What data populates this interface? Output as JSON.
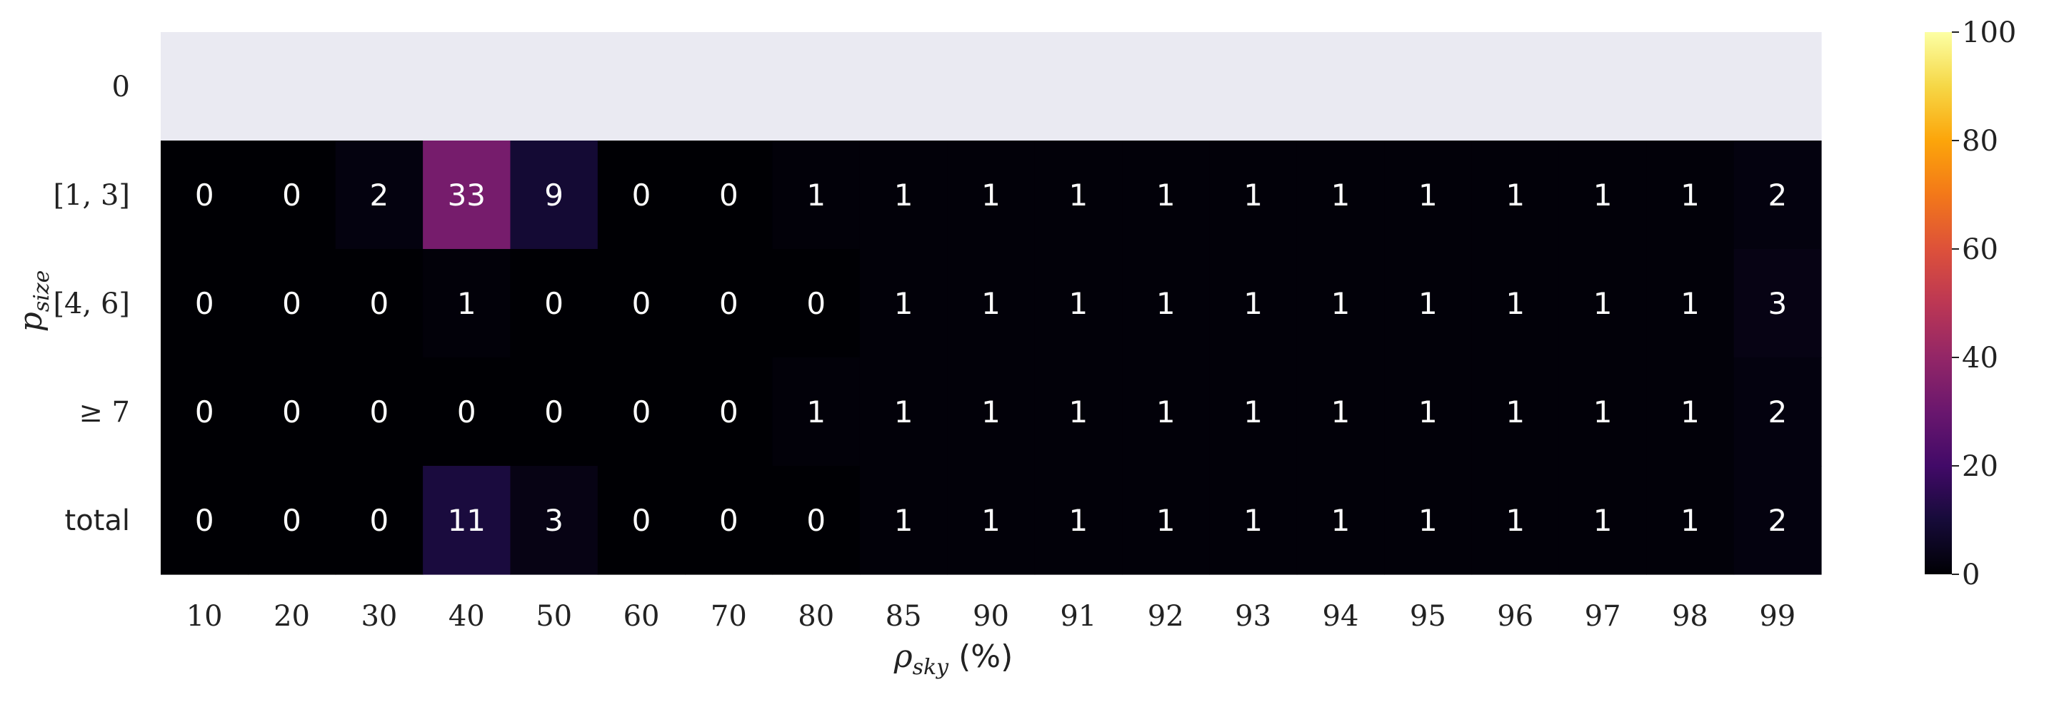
{
  "chart_data": {
    "type": "heatmap",
    "colormap": "inferno",
    "x_categories": [
      "10",
      "20",
      "30",
      "40",
      "50",
      "60",
      "70",
      "80",
      "85",
      "90",
      "91",
      "92",
      "93",
      "94",
      "95",
      "96",
      "97",
      "98",
      "99"
    ],
    "y_categories": [
      "0",
      "[1, 3]",
      "[4, 6]",
      "≥ 7",
      "total"
    ],
    "values": [
      [
        null,
        null,
        null,
        null,
        null,
        null,
        null,
        null,
        null,
        null,
        null,
        null,
        null,
        null,
        null,
        null,
        null,
        null,
        null
      ],
      [
        0,
        0,
        2,
        33,
        9,
        0,
        0,
        1,
        1,
        1,
        1,
        1,
        1,
        1,
        1,
        1,
        1,
        1,
        2
      ],
      [
        0,
        0,
        0,
        1,
        0,
        0,
        0,
        0,
        1,
        1,
        1,
        1,
        1,
        1,
        1,
        1,
        1,
        1,
        3
      ],
      [
        0,
        0,
        0,
        0,
        0,
        0,
        0,
        1,
        1,
        1,
        1,
        1,
        1,
        1,
        1,
        1,
        1,
        1,
        2
      ],
      [
        0,
        0,
        0,
        11,
        3,
        0,
        0,
        0,
        1,
        1,
        1,
        1,
        1,
        1,
        1,
        1,
        1,
        1,
        2
      ]
    ],
    "xlabel_symbol": "ρ",
    "xlabel_sub": "sky",
    "xlabel_unit": "(%)",
    "ylabel_symbol": "p",
    "ylabel_sub": "size",
    "colorbar_range": [
      0,
      100
    ],
    "colorbar_ticks": [
      "0",
      "20",
      "40",
      "60",
      "80",
      "100"
    ],
    "missing_color": "#eaeaf2",
    "annotation_color": "#ffffff"
  }
}
